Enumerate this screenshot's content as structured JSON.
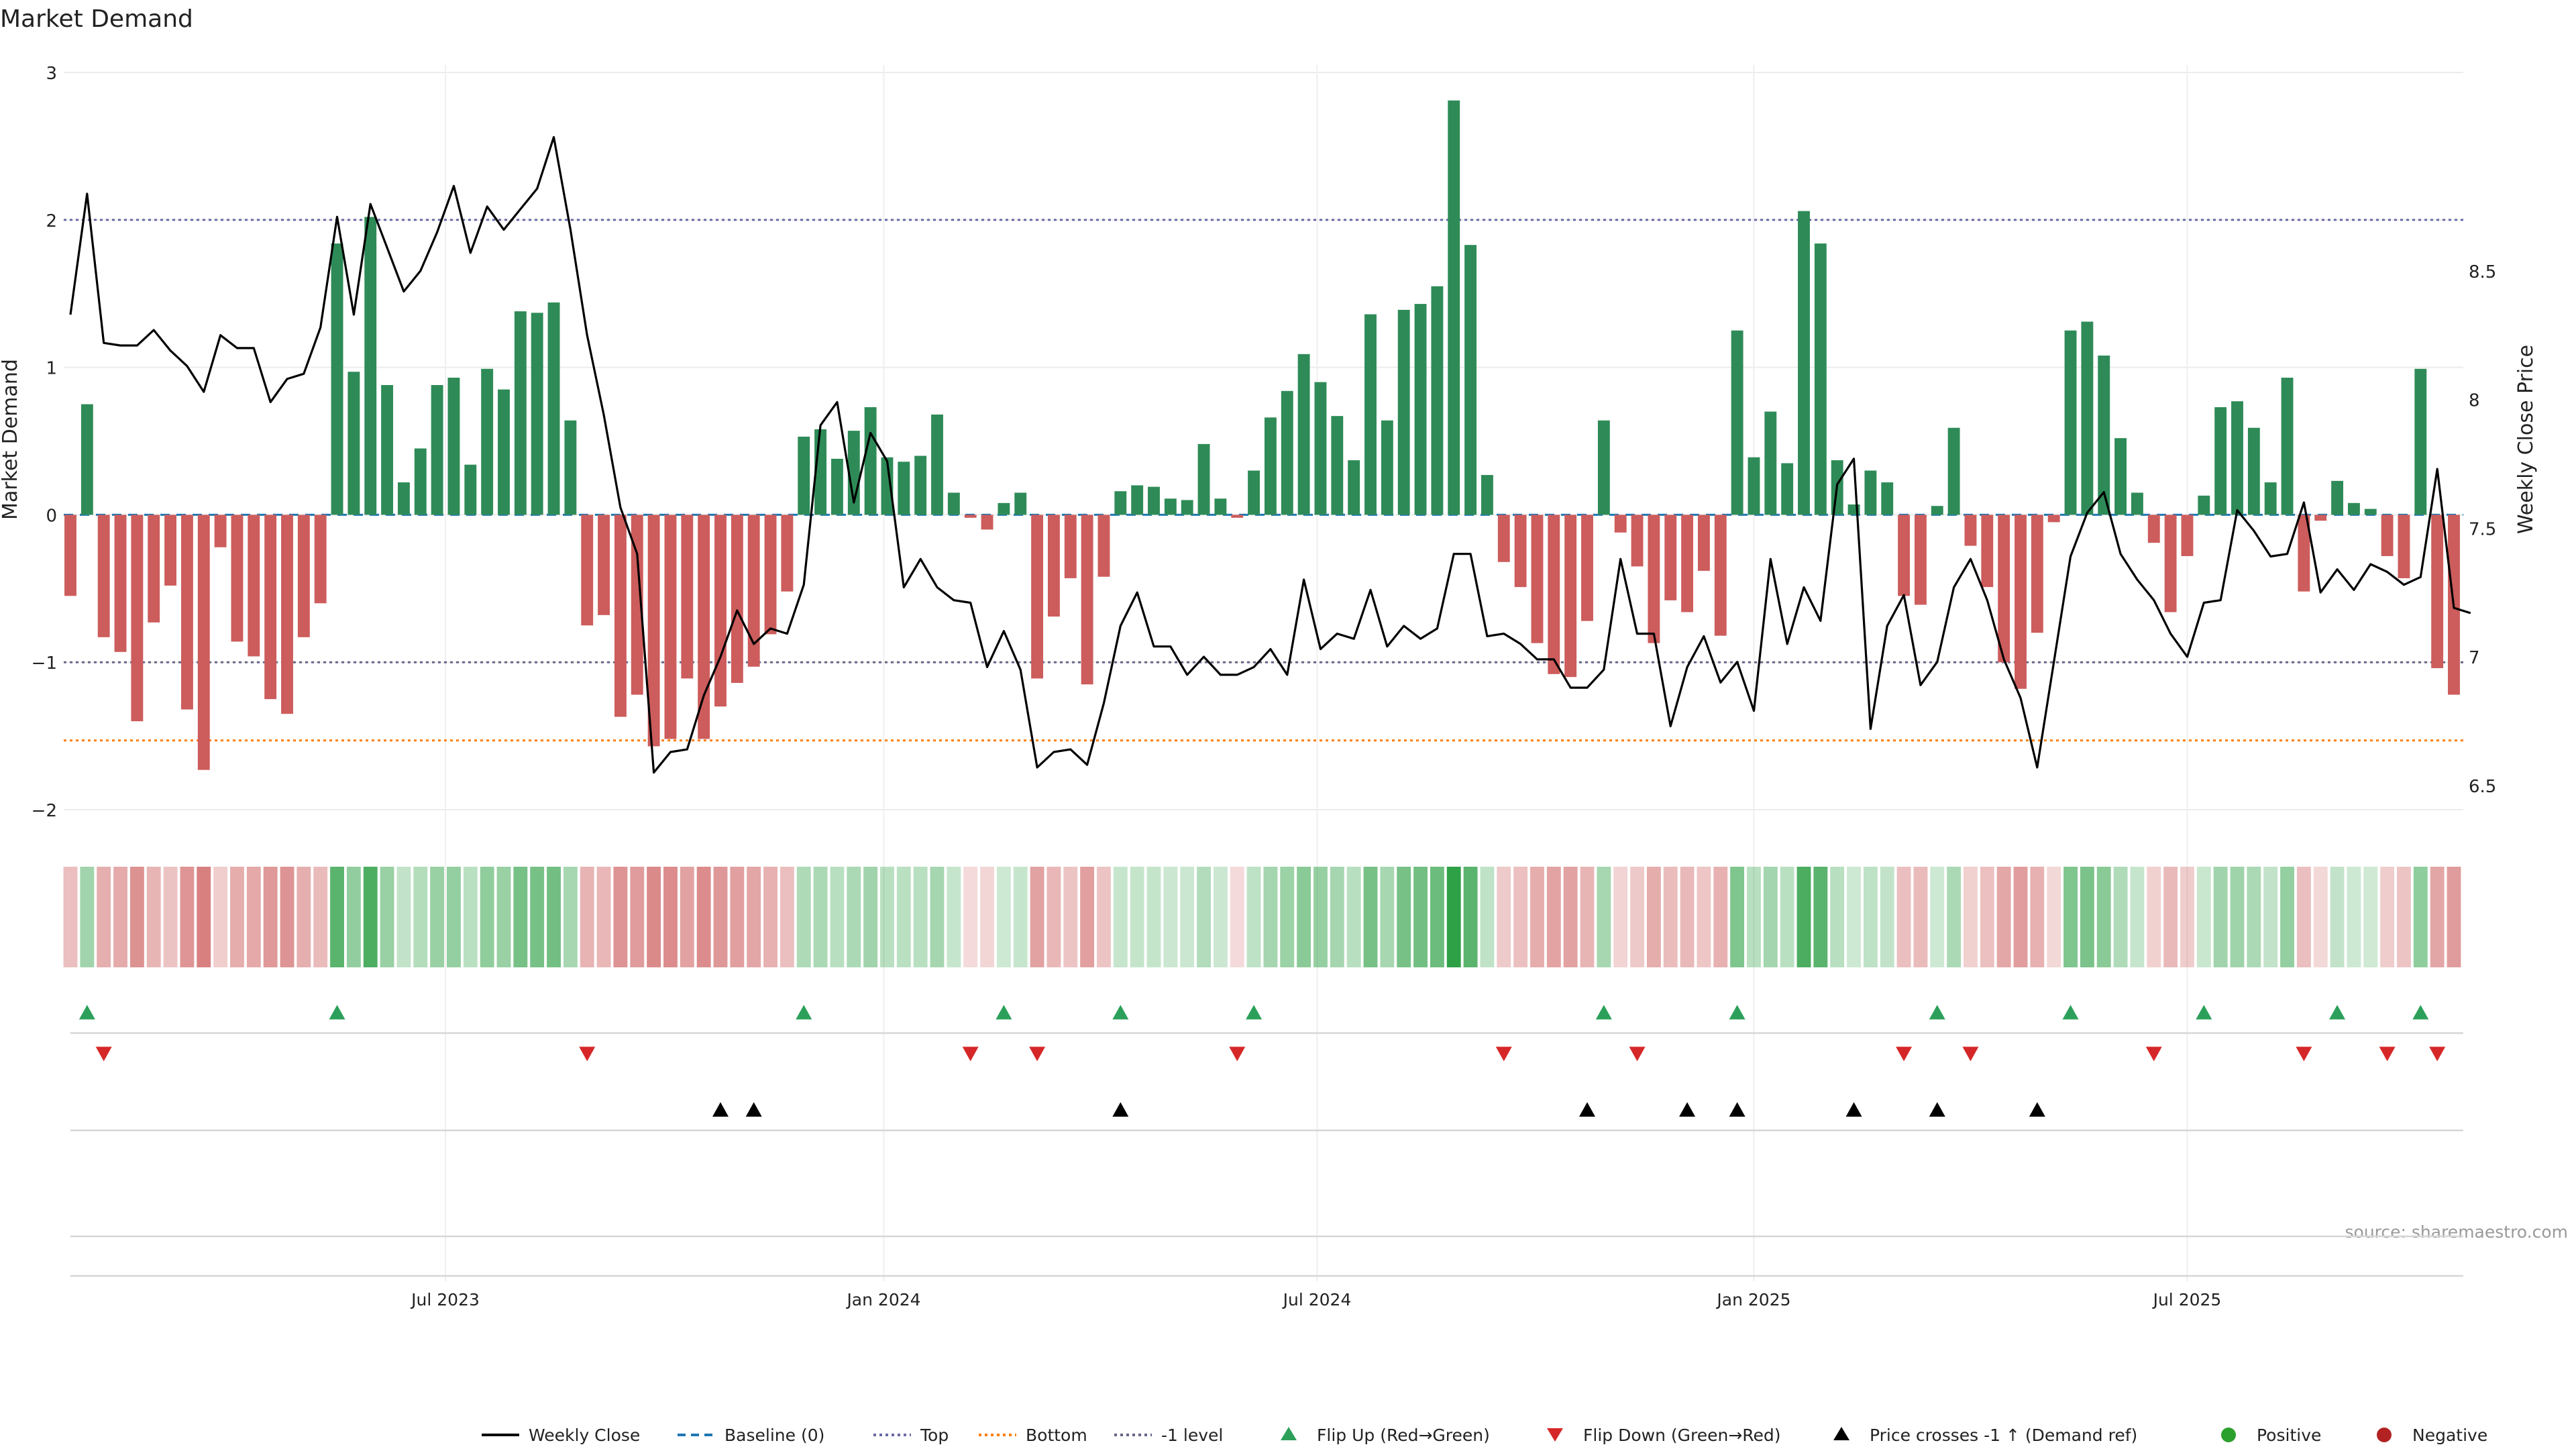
{
  "chart_data": {
    "type": "bar",
    "title": "Market Demand",
    "ylabel_left": "Market Demand",
    "ylabel_right": "Weekly Close Price",
    "source": "source: sharemaestro.com",
    "y_left": {
      "min": -2.15,
      "max": 3.05,
      "ticks": [
        -2,
        -1,
        0,
        1,
        2,
        3
      ],
      "tick_labels": [
        "−2",
        "−1",
        "0",
        "1",
        "2",
        "3"
      ]
    },
    "y_right": {
      "min": 6.45,
      "max": 9.3,
      "ticks": [
        6.5,
        7,
        7.5,
        8,
        8.5
      ],
      "tick_labels": [
        "6.5",
        "7",
        "7.5",
        "8",
        "8.5"
      ]
    },
    "x_ticks": [
      {
        "week": 22.5,
        "label": "Jul 2023"
      },
      {
        "week": 48.8,
        "label": "Jan 2024"
      },
      {
        "week": 74.8,
        "label": "Jul 2024"
      },
      {
        "week": 101,
        "label": "Jan 2025"
      },
      {
        "week": 127,
        "label": "Jul 2025"
      }
    ],
    "reference_lines": {
      "baseline": 0,
      "top": 2.0,
      "bottom": -1.53,
      "minus_one": -1.0
    },
    "demand": [
      -0.55,
      0.75,
      -0.83,
      -0.93,
      -1.4,
      -0.73,
      -0.48,
      -1.32,
      -1.73,
      -0.22,
      -0.86,
      -0.96,
      -1.25,
      -1.35,
      -0.83,
      -0.6,
      1.84,
      0.97,
      2.02,
      0.88,
      0.22,
      0.45,
      0.88,
      0.93,
      0.34,
      0.99,
      0.85,
      1.38,
      1.37,
      1.44,
      0.64,
      -0.75,
      -0.68,
      -1.37,
      -1.22,
      -1.57,
      -1.52,
      -1.11,
      -1.52,
      -1.3,
      -1.14,
      -1.03,
      -0.81,
      -0.52,
      0.53,
      0.58,
      0.38,
      0.57,
      0.73,
      0.39,
      0.36,
      0.4,
      0.68,
      0.15,
      -0.02,
      -0.1,
      0.08,
      0.15,
      -1.11,
      -0.69,
      -0.43,
      -1.15,
      -0.42,
      0.16,
      0.2,
      0.19,
      0.11,
      0.1,
      0.48,
      0.11,
      -0.02,
      0.3,
      0.66,
      0.84,
      1.09,
      0.9,
      0.67,
      0.37,
      1.36,
      0.64,
      1.39,
      1.43,
      1.55,
      2.81,
      1.83,
      0.27,
      -0.32,
      -0.49,
      -0.87,
      -1.08,
      -1.1,
      -0.72,
      0.64,
      -0.12,
      -0.35,
      -0.87,
      -0.58,
      -0.66,
      -0.38,
      -0.82,
      1.25,
      0.39,
      0.7,
      0.35,
      2.06,
      1.84,
      0.37,
      0.07,
      0.3,
      0.22,
      -0.55,
      -0.61,
      0.06,
      0.59,
      -0.21,
      -0.49,
      -1.0,
      -1.18,
      -0.8,
      -0.05,
      1.25,
      1.31,
      1.08,
      0.52,
      0.15,
      -0.19,
      -0.66,
      -0.28,
      0.13,
      0.73,
      0.77,
      0.59,
      0.22,
      0.93,
      -0.52,
      -0.04,
      0.23,
      0.08,
      0.04,
      -0.28,
      -0.43,
      0.99,
      -1.04,
      -1.22
    ],
    "weekly_close": [
      8.33,
      8.8,
      8.22,
      8.21,
      8.21,
      8.27,
      8.19,
      8.13,
      8.03,
      8.25,
      8.2,
      8.2,
      7.99,
      8.08,
      8.1,
      8.28,
      8.71,
      8.33,
      8.76,
      8.59,
      8.42,
      8.5,
      8.65,
      8.83,
      8.57,
      8.75,
      8.66,
      8.74,
      8.82,
      9.02,
      8.66,
      8.25,
      7.94,
      7.58,
      7.4,
      6.55,
      6.63,
      6.64,
      6.85,
      7.0,
      7.18,
      7.05,
      7.11,
      7.09,
      7.28,
      7.9,
      7.99,
      7.6,
      7.87,
      7.76,
      7.27,
      7.38,
      7.27,
      7.22,
      7.21,
      6.96,
      7.1,
      6.95,
      6.57,
      6.63,
      6.64,
      6.58,
      6.82,
      7.12,
      7.25,
      7.04,
      7.04,
      6.93,
      7.0,
      6.93,
      6.93,
      6.96,
      7.03,
      6.93,
      7.3,
      7.03,
      7.09,
      7.07,
      7.26,
      7.04,
      7.12,
      7.07,
      7.11,
      7.4,
      7.4,
      7.08,
      7.09,
      7.05,
      6.99,
      6.99,
      6.88,
      6.88,
      6.95,
      7.38,
      7.09,
      7.09,
      6.73,
      6.96,
      7.08,
      6.9,
      6.98,
      6.79,
      7.38,
      7.05,
      7.27,
      7.14,
      7.67,
      7.77,
      6.72,
      7.12,
      7.24,
      6.89,
      6.98,
      7.27,
      7.38,
      7.22,
      6.99,
      6.84,
      6.57,
      6.98,
      7.39,
      7.56,
      7.64,
      7.4,
      7.3,
      7.22,
      7.09,
      7.0,
      7.21,
      7.22,
      7.57,
      7.49,
      7.39,
      7.4,
      7.6,
      7.25,
      7.34,
      7.26,
      7.36,
      7.33,
      7.28,
      7.31,
      7.73,
      7.19,
      7.17
    ],
    "flip_up_weeks": [
      1,
      16,
      44,
      56,
      63,
      71,
      92,
      100,
      112,
      120,
      128,
      136,
      141
    ],
    "flip_down_weeks": [
      2,
      31,
      54,
      58,
      70,
      86,
      94,
      110,
      114,
      125,
      134,
      139,
      142
    ],
    "price_cross_weeks": [
      39,
      41,
      63,
      91,
      97,
      100,
      107,
      112,
      118
    ],
    "legend": [
      {
        "label": "Weekly Close",
        "kind": "line",
        "color": "#000000"
      },
      {
        "label": "Baseline (0)",
        "kind": "dashed",
        "color": "#1f77b4"
      },
      {
        "label": "Top",
        "kind": "dotted",
        "color": "#6a6aa8"
      },
      {
        "label": "Bottom",
        "kind": "dotted",
        "color": "#ff7f0e"
      },
      {
        "label": "-1 level",
        "kind": "dotted",
        "color": "#666688"
      },
      {
        "label": "Flip Up (Red→Green)",
        "kind": "tri-up",
        "color": "#2ca05a"
      },
      {
        "label": "Flip Down (Green→Red)",
        "kind": "tri-down",
        "color": "#d62728"
      },
      {
        "label": "Price crosses -1 ↑ (Demand ref)",
        "kind": "tri-up",
        "color": "#000000"
      },
      {
        "label": "Positive",
        "kind": "dot",
        "color": "#2ca02c"
      },
      {
        "label": "Negative",
        "kind": "dot",
        "color": "#b22222"
      }
    ],
    "colors": {
      "positive_bar": "#2e8b57",
      "negative_bar": "#cd5c5c",
      "flip_up": "#2ca05a",
      "flip_down": "#d62728",
      "price_cross": "#000000"
    }
  }
}
